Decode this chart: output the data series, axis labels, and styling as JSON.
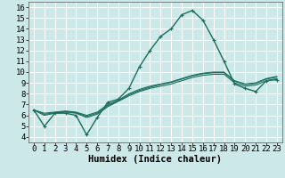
{
  "xlabel": "Humidex (Indice chaleur)",
  "xlim": [
    -0.5,
    23.5
  ],
  "ylim": [
    3.5,
    16.5
  ],
  "xticks": [
    0,
    1,
    2,
    3,
    4,
    5,
    6,
    7,
    8,
    9,
    10,
    11,
    12,
    13,
    14,
    15,
    16,
    17,
    18,
    19,
    20,
    21,
    22,
    23
  ],
  "yticks": [
    4,
    5,
    6,
    7,
    8,
    9,
    10,
    11,
    12,
    13,
    14,
    15,
    16
  ],
  "bg_color": "#cce8e8",
  "grid_color": "#ffffff",
  "line_color": "#1a6e5e",
  "series_main": [
    6.5,
    5.0,
    6.2,
    6.2,
    6.0,
    4.2,
    5.8,
    7.2,
    7.5,
    8.5,
    10.5,
    12.0,
    13.3,
    14.0,
    15.3,
    15.7,
    14.8,
    13.0,
    11.0,
    8.9,
    8.5,
    8.2,
    9.2,
    9.3
  ],
  "series_flat": [
    [
      6.5,
      6.0,
      6.2,
      6.3,
      6.2,
      5.8,
      6.1,
      6.8,
      7.3,
      7.8,
      8.2,
      8.5,
      8.7,
      8.9,
      9.2,
      9.5,
      9.7,
      9.8,
      9.8,
      9.0,
      8.7,
      8.8,
      9.2,
      9.4
    ],
    [
      6.5,
      6.1,
      6.25,
      6.35,
      6.25,
      5.9,
      6.2,
      6.9,
      7.35,
      7.9,
      8.3,
      8.6,
      8.85,
      9.05,
      9.35,
      9.65,
      9.85,
      9.95,
      9.95,
      9.15,
      8.85,
      8.95,
      9.35,
      9.55
    ],
    [
      6.5,
      6.2,
      6.3,
      6.4,
      6.3,
      6.0,
      6.3,
      7.0,
      7.4,
      8.0,
      8.4,
      8.7,
      8.9,
      9.1,
      9.4,
      9.7,
      9.9,
      10.0,
      10.0,
      9.2,
      8.9,
      9.0,
      9.4,
      9.6
    ]
  ],
  "font_size_tick": 6.5,
  "font_size_label": 7.5
}
